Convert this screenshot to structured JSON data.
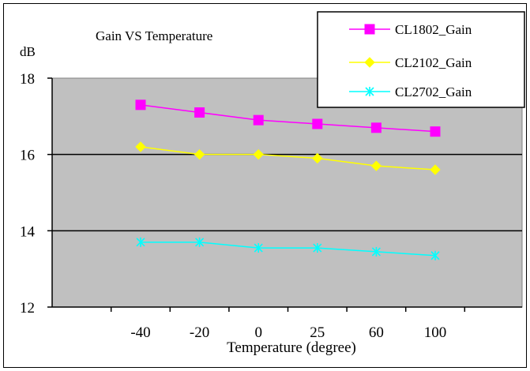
{
  "chart_data": {
    "type": "line",
    "title": "Gain VS Temperature",
    "ylabel": "dB",
    "xlabel": "Temperature (degree)",
    "categories": [
      "-40",
      "-20",
      "0",
      "25",
      "60",
      "100"
    ],
    "ylim": [
      12,
      18
    ],
    "yticks": [
      "12",
      "14",
      "16",
      "18"
    ],
    "grid": true,
    "legend_position": "top-right",
    "plot_background": "#c0c0c0",
    "series": [
      {
        "name": "CL1802_Gain",
        "values": [
          17.3,
          17.1,
          16.9,
          16.8,
          16.7,
          16.6
        ],
        "color": "#ff00ff",
        "marker": "square"
      },
      {
        "name": "CL2102_Gain",
        "values": [
          16.2,
          16.0,
          16.0,
          15.9,
          15.7,
          15.6
        ],
        "color": "#ffff00",
        "marker": "diamond"
      },
      {
        "name": "CL2702_Gain",
        "values": [
          13.7,
          13.7,
          13.55,
          13.55,
          13.45,
          13.35
        ],
        "color": "#00ffff",
        "marker": "star"
      }
    ]
  }
}
